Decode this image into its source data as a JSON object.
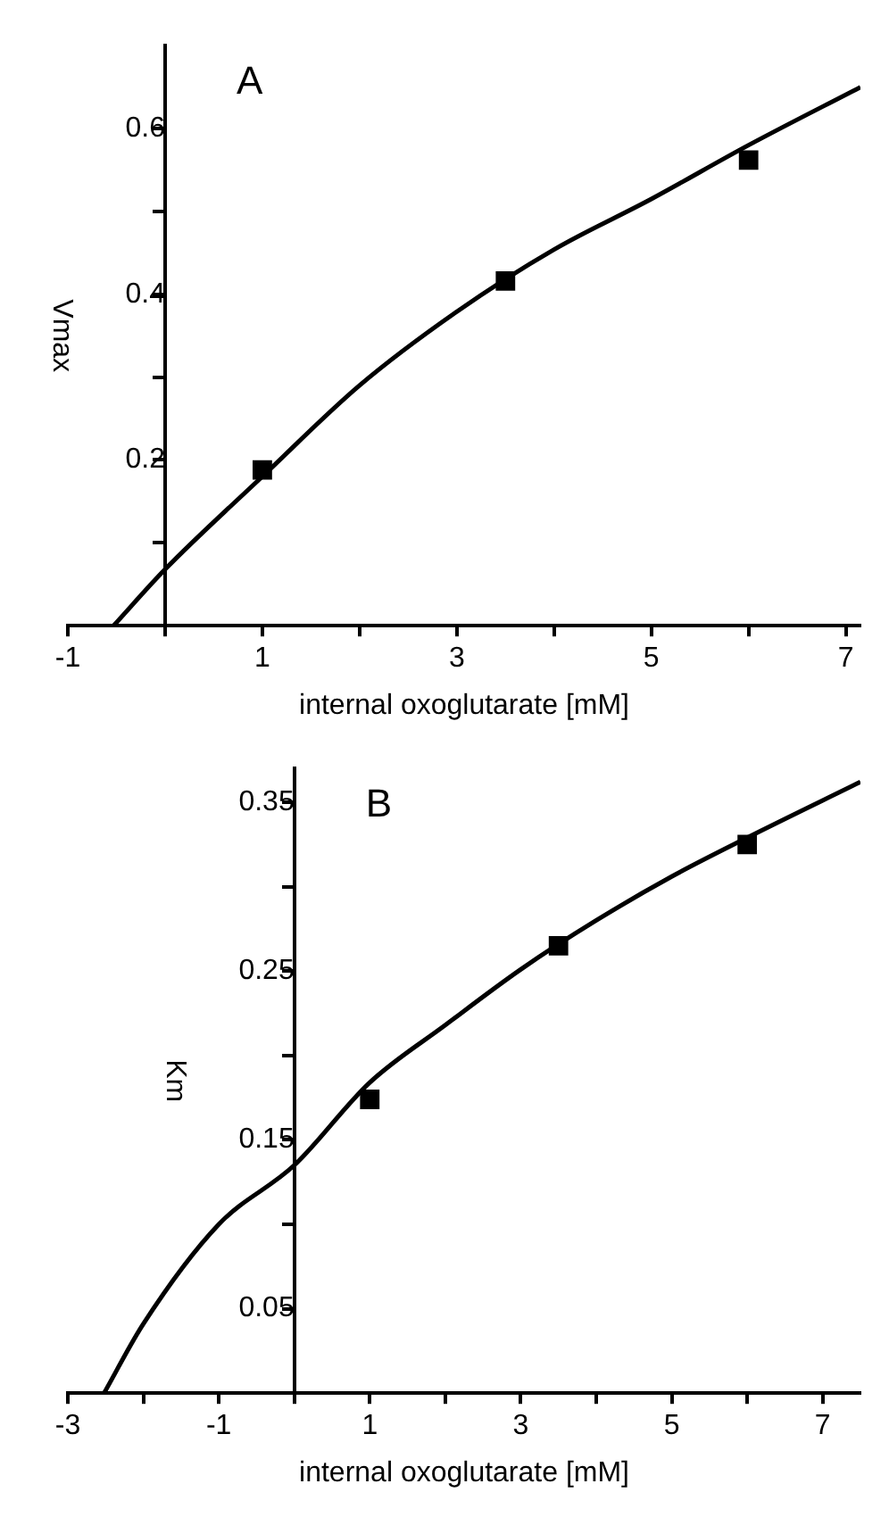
{
  "chart_data": [
    {
      "type": "scatter",
      "xlabel": "internal oxoglutarate [mM]",
      "ylabel": "Vmax",
      "annotations": [
        "A"
      ],
      "xlim": [
        -1,
        7.15
      ],
      "ylim": [
        0,
        0.7
      ],
      "xticks": [
        -1,
        {
          "value": 0,
          "label": null
        },
        1,
        {
          "value": 2,
          "label": null
        },
        3,
        {
          "value": 4,
          "label": null
        },
        5,
        {
          "value": 6,
          "label": null
        },
        7
      ],
      "yticks": [
        {
          "value": 0.1,
          "label": null
        },
        0.2,
        {
          "value": 0.3,
          "label": null
        },
        0.4,
        {
          "value": 0.5,
          "label": null
        },
        0.6
      ],
      "grid": false,
      "legend": false,
      "series": [
        {
          "type": "scatter",
          "marker": "square",
          "color": "#000000",
          "x": [
            1,
            3.5,
            6
          ],
          "values": [
            0.188,
            0.416,
            0.562
          ]
        },
        {
          "type": "line",
          "marker": "none",
          "line_style": "solid",
          "color": "#000000",
          "x": [
            -0.53,
            0,
            1,
            2,
            3,
            4,
            5,
            6,
            7.15
          ],
          "values": [
            0,
            0.068,
            0.18,
            0.29,
            0.379,
            0.454,
            0.515,
            0.58,
            0.65
          ]
        }
      ]
    },
    {
      "type": "scatter",
      "xlabel": "internal oxoglutarate [mM]",
      "ylabel": "Km",
      "annotations": [
        "B"
      ],
      "xlim": [
        -3,
        7.5
      ],
      "ylim": [
        0,
        0.37
      ],
      "xticks": [
        -3,
        {
          "value": -2,
          "label": null
        },
        -1,
        {
          "value": 0,
          "label": null
        },
        1,
        {
          "value": 2,
          "label": null
        },
        3,
        {
          "value": 4,
          "label": null
        },
        5,
        {
          "value": 6,
          "label": null
        },
        7
      ],
      "yticks": [
        0.05,
        {
          "value": 0.1,
          "label": null
        },
        0.15,
        {
          "value": 0.2,
          "label": null
        },
        0.25,
        {
          "value": 0.3,
          "label": null
        },
        0.35
      ],
      "grid": false,
      "legend": false,
      "series": [
        {
          "type": "scatter",
          "marker": "square",
          "color": "#000000",
          "x": [
            1,
            3.5,
            6
          ],
          "values": [
            0.174,
            0.265,
            0.325
          ]
        },
        {
          "type": "line",
          "marker": "none",
          "line_style": "solid",
          "color": "#000000",
          "x": [
            -2.52,
            -2,
            -1,
            0,
            1,
            2,
            3,
            4,
            5,
            6,
            7.5
          ],
          "values": [
            0,
            0.041,
            0.1,
            0.135,
            0.184,
            0.218,
            0.251,
            0.28,
            0.306,
            0.329,
            0.362
          ]
        }
      ]
    }
  ]
}
